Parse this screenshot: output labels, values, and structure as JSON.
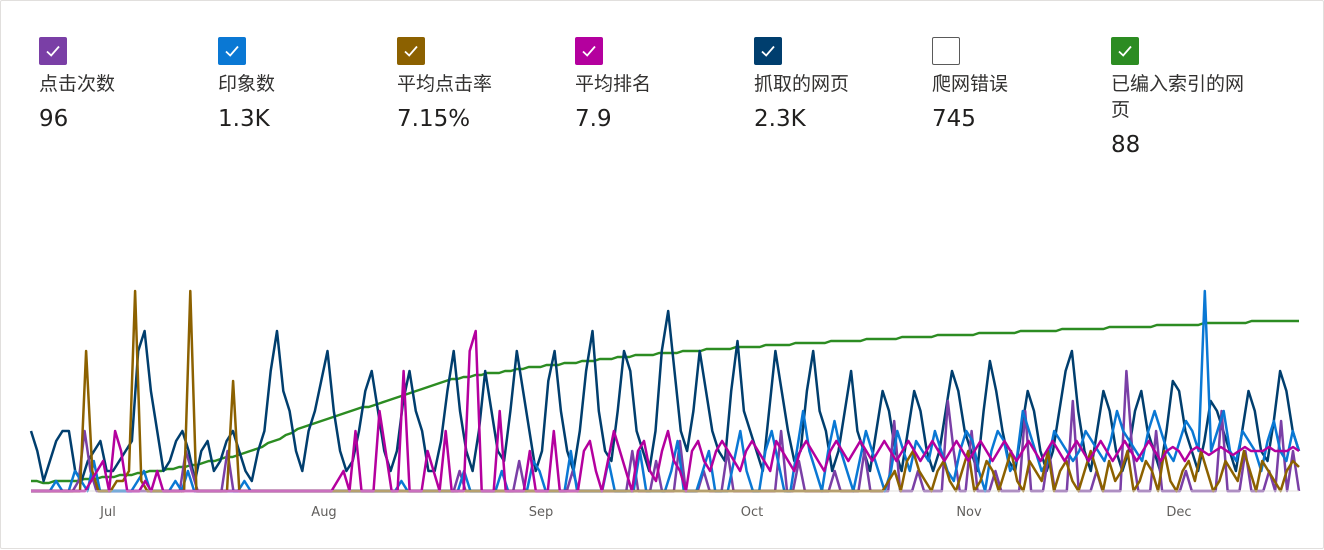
{
  "metrics": [
    {
      "label": "点击次数",
      "value": "96",
      "color": "#7a3fa6",
      "checked": true
    },
    {
      "label": "印象数",
      "value": "1.3K",
      "color": "#0a78d4",
      "checked": true
    },
    {
      "label": "平均点击率",
      "value": "7.15%",
      "color": "#8c6100",
      "checked": true
    },
    {
      "label": "平均排名",
      "value": "7.9",
      "color": "#b4009e",
      "checked": true
    },
    {
      "label": "抓取的网页",
      "value": "2.3K",
      "color": "#003e6e",
      "checked": true
    },
    {
      "label": "爬网错误",
      "value": "745",
      "color": "#ffffff",
      "checked": false
    },
    {
      "label": "已编入索引的网页",
      "value": "88",
      "color": "#2c8c22",
      "checked": true
    }
  ],
  "chart_data": {
    "type": "line",
    "x_ticks": [
      "Jul",
      "Aug",
      "Sep",
      "Oct",
      "Nov",
      "Dec"
    ],
    "grid": false,
    "legend": "top",
    "series": [
      {
        "name": "已编入索引的网页",
        "color": "#2c8c22",
        "values": [
          5,
          5,
          4,
          4,
          5,
          5,
          5,
          5,
          5,
          6,
          6,
          6,
          7,
          7,
          7,
          8,
          8,
          8,
          9,
          9,
          10,
          10,
          10,
          11,
          11,
          12,
          12,
          13,
          13,
          14,
          15,
          15,
          16,
          17,
          17,
          18,
          19,
          20,
          21,
          22,
          24,
          25,
          26,
          28,
          29,
          31,
          32,
          33,
          34,
          35,
          36,
          37,
          38,
          39,
          40,
          41,
          42,
          42,
          43,
          44,
          45,
          46,
          47,
          48,
          49,
          50,
          51,
          52,
          53,
          54,
          55,
          56,
          56,
          57,
          57,
          58,
          58,
          59,
          59,
          59,
          60,
          60,
          61,
          61,
          62,
          62,
          62,
          63,
          63,
          63,
          64,
          64,
          64,
          65,
          65,
          65,
          66,
          66,
          66,
          67,
          67,
          67,
          68,
          68,
          68,
          68,
          69,
          69,
          69,
          69,
          70,
          70,
          70,
          70,
          71,
          71,
          71,
          71,
          71,
          72,
          72,
          72,
          72,
          72,
          73,
          73,
          73,
          73,
          73,
          74,
          74,
          74,
          74,
          74,
          74,
          75,
          75,
          75,
          75,
          75,
          75,
          76,
          76,
          76,
          76,
          76,
          76,
          77,
          77,
          77,
          77,
          77,
          77,
          78,
          78,
          78,
          78,
          78,
          78,
          78,
          79,
          79,
          79,
          79,
          79,
          79,
          79,
          80,
          80,
          80,
          80,
          80,
          80,
          80,
          81,
          81,
          81,
          81,
          81,
          81,
          81,
          81,
          82,
          82,
          82,
          82,
          82,
          82,
          82,
          82,
          83,
          83,
          83,
          83,
          83,
          83,
          83,
          83,
          84,
          84,
          84,
          84,
          84,
          84,
          84,
          84,
          85,
          85,
          85,
          85,
          85,
          85,
          85,
          85,
          85
        ]
      },
      {
        "name": "抓取的网页",
        "color": "#003e6e",
        "values": [
          30,
          20,
          5,
          15,
          25,
          30,
          30,
          10,
          5,
          15,
          20,
          25,
          10,
          10,
          15,
          20,
          25,
          70,
          80,
          50,
          30,
          10,
          15,
          25,
          30,
          20,
          5,
          20,
          25,
          10,
          15,
          25,
          30,
          20,
          10,
          5,
          20,
          30,
          60,
          80,
          50,
          40,
          20,
          10,
          30,
          40,
          55,
          70,
          40,
          20,
          10,
          15,
          30,
          50,
          60,
          40,
          20,
          10,
          20,
          45,
          60,
          40,
          30,
          10,
          10,
          25,
          50,
          70,
          40,
          20,
          10,
          30,
          60,
          40,
          20,
          15,
          40,
          70,
          50,
          30,
          10,
          20,
          55,
          70,
          40,
          20,
          10,
          30,
          60,
          80,
          40,
          20,
          15,
          40,
          70,
          60,
          30,
          20,
          10,
          30,
          70,
          90,
          60,
          30,
          20,
          40,
          70,
          50,
          30,
          20,
          15,
          50,
          75,
          40,
          30,
          20,
          10,
          40,
          70,
          50,
          30,
          15,
          20,
          50,
          70,
          40,
          30,
          10,
          20,
          40,
          60,
          30,
          20,
          10,
          30,
          50,
          40,
          20,
          10,
          30,
          50,
          40,
          20,
          10,
          20,
          40,
          60,
          50,
          30,
          20,
          10,
          40,
          65,
          50,
          30,
          15,
          10,
          30,
          50,
          40,
          20,
          10,
          20,
          40,
          60,
          70,
          40,
          20,
          10,
          30,
          50,
          40,
          20,
          10,
          20,
          40,
          50,
          30,
          20,
          10,
          30,
          55,
          50,
          30,
          20,
          10,
          25,
          45,
          40,
          30,
          20,
          10,
          30,
          50,
          40,
          20,
          15,
          35,
          60,
          50,
          30,
          20
        ]
      },
      {
        "name": "点击次数",
        "color": "#7a3fa6",
        "values": [
          0,
          0,
          0,
          0,
          0,
          0,
          0,
          0,
          5,
          30,
          10,
          0,
          0,
          0,
          0,
          0,
          0,
          0,
          0,
          0,
          0,
          0,
          0,
          0,
          0,
          0,
          20,
          10,
          0,
          0,
          0,
          0,
          0,
          20,
          0,
          0,
          0,
          0,
          0,
          0,
          0,
          0,
          0,
          0,
          0,
          0,
          0,
          0,
          0,
          0,
          0,
          0,
          0,
          0,
          0,
          0,
          0,
          0,
          0,
          0,
          0,
          0,
          0,
          0,
          0,
          0,
          0,
          0,
          0,
          0,
          0,
          0,
          10,
          0,
          0,
          0,
          0,
          0,
          0,
          0,
          0,
          0,
          15,
          0,
          0,
          0,
          0,
          0,
          0,
          0,
          0,
          10,
          0,
          0,
          0,
          0,
          0,
          0,
          0,
          0,
          0,
          20,
          0,
          0,
          0,
          15,
          0,
          0,
          0,
          25,
          0,
          0,
          0,
          10,
          0,
          0,
          0,
          20,
          0,
          0,
          0,
          0,
          0,
          0,
          0,
          0,
          30,
          0,
          0,
          15,
          0,
          0,
          0,
          0,
          0,
          10,
          0,
          0,
          0,
          0,
          20,
          0,
          0,
          0,
          0,
          35,
          0,
          0,
          0,
          10,
          0,
          0,
          0,
          0,
          45,
          20,
          0,
          0,
          30,
          0,
          0,
          0,
          10,
          0,
          0,
          0,
          0,
          40,
          0,
          0,
          0,
          20,
          0,
          0,
          0,
          45,
          0,
          0,
          0,
          10,
          0,
          0,
          0,
          0,
          60,
          20,
          0,
          0,
          0,
          30,
          0,
          0,
          0,
          0,
          10,
          0,
          0,
          0,
          0,
          0,
          40,
          0,
          0,
          0,
          20,
          0,
          0,
          0,
          10,
          0,
          35,
          0,
          20,
          0
        ]
      },
      {
        "name": "印象数",
        "color": "#0a78d4",
        "values": [
          0,
          0,
          0,
          0,
          5,
          0,
          0,
          10,
          5,
          0,
          15,
          0,
          0,
          0,
          0,
          0,
          0,
          5,
          10,
          0,
          0,
          0,
          0,
          5,
          0,
          10,
          0,
          0,
          0,
          0,
          0,
          0,
          0,
          0,
          5,
          0,
          0,
          0,
          0,
          0,
          0,
          0,
          0,
          0,
          0,
          0,
          0,
          0,
          0,
          0,
          0,
          0,
          0,
          0,
          0,
          0,
          0,
          0,
          0,
          5,
          0,
          0,
          0,
          0,
          0,
          0,
          0,
          0,
          0,
          10,
          0,
          0,
          0,
          0,
          0,
          10,
          0,
          0,
          0,
          0,
          15,
          10,
          0,
          0,
          0,
          0,
          20,
          0,
          0,
          0,
          0,
          0,
          15,
          0,
          0,
          0,
          0,
          20,
          0,
          0,
          0,
          0,
          10,
          25,
          0,
          0,
          0,
          10,
          20,
          0,
          0,
          0,
          15,
          30,
          10,
          0,
          0,
          20,
          30,
          15,
          0,
          0,
          20,
          40,
          20,
          10,
          0,
          20,
          35,
          20,
          10,
          0,
          15,
          30,
          20,
          10,
          0,
          10,
          30,
          20,
          10,
          25,
          20,
          15,
          30,
          20,
          10,
          5,
          20,
          30,
          25,
          10,
          0,
          20,
          30,
          25,
          10,
          15,
          40,
          30,
          20,
          10,
          15,
          30,
          25,
          20,
          15,
          20,
          30,
          25,
          20,
          15,
          25,
          40,
          30,
          25,
          20,
          15,
          30,
          40,
          30,
          20,
          15,
          25,
          35,
          30,
          20,
          100,
          20,
          30,
          40,
          20,
          15,
          30,
          25,
          20,
          10,
          25,
          35,
          20,
          15,
          30,
          20
        ]
      },
      {
        "name": "平均点击率",
        "color": "#8c6100",
        "values": [
          0,
          0,
          0,
          0,
          0,
          0,
          0,
          0,
          0,
          70,
          10,
          0,
          0,
          0,
          5,
          5,
          10,
          100,
          5,
          0,
          0,
          0,
          0,
          0,
          0,
          0,
          100,
          0,
          0,
          0,
          0,
          0,
          0,
          55,
          0,
          0,
          0,
          0,
          0,
          0,
          0,
          0,
          0,
          0,
          0,
          0,
          0,
          0,
          0,
          0,
          0,
          0,
          0,
          0,
          0,
          0,
          0,
          0,
          0,
          0,
          0,
          0,
          0,
          0,
          0,
          0,
          0,
          0,
          0,
          0,
          0,
          0,
          0,
          0,
          0,
          0,
          0,
          0,
          0,
          0,
          0,
          0,
          0,
          0,
          0,
          0,
          0,
          0,
          0,
          0,
          0,
          0,
          0,
          0,
          0,
          0,
          0,
          0,
          0,
          0,
          0,
          0,
          0,
          0,
          0,
          0,
          0,
          0,
          0,
          0,
          0,
          0,
          0,
          0,
          0,
          0,
          0,
          0,
          0,
          0,
          0,
          0,
          0,
          0,
          0,
          0,
          0,
          0,
          0,
          0,
          0,
          0,
          0,
          0,
          0,
          0,
          0,
          0,
          0,
          0,
          5,
          10,
          0,
          15,
          20,
          10,
          5,
          0,
          10,
          15,
          5,
          0,
          10,
          20,
          0,
          5,
          15,
          10,
          0,
          10,
          20,
          5,
          0,
          15,
          10,
          5,
          20,
          0,
          10,
          15,
          5,
          0,
          10,
          20,
          10,
          0,
          15,
          5,
          10,
          20,
          0,
          5,
          15,
          10,
          0,
          20,
          5,
          0,
          10,
          15,
          5,
          20,
          10,
          0,
          5,
          15,
          10,
          5,
          20,
          10,
          0,
          15,
          10,
          5,
          0,
          10,
          15,
          12
        ]
      },
      {
        "name": "平均排名",
        "color": "#b4009e",
        "values": [
          0,
          0,
          0,
          0,
          0,
          0,
          0,
          0,
          0,
          0,
          5,
          10,
          15,
          0,
          30,
          20,
          0,
          0,
          0,
          5,
          0,
          10,
          0,
          0,
          0,
          0,
          0,
          0,
          0,
          0,
          0,
          0,
          0,
          0,
          0,
          0,
          0,
          0,
          0,
          0,
          0,
          0,
          0,
          0,
          0,
          0,
          0,
          0,
          0,
          0,
          0,
          5,
          10,
          0,
          30,
          0,
          0,
          0,
          40,
          20,
          0,
          0,
          60,
          0,
          0,
          0,
          20,
          10,
          0,
          30,
          0,
          0,
          0,
          70,
          80,
          0,
          0,
          0,
          40,
          0,
          0,
          0,
          0,
          20,
          0,
          0,
          0,
          30,
          0,
          0,
          0,
          0,
          20,
          25,
          10,
          0,
          15,
          30,
          20,
          10,
          0,
          20,
          25,
          10,
          5,
          20,
          30,
          15,
          10,
          0,
          20,
          25,
          15,
          10,
          20,
          25,
          20,
          15,
          10,
          20,
          25,
          20,
          15,
          10,
          25,
          20,
          15,
          10,
          20,
          25,
          20,
          15,
          10,
          20,
          25,
          20,
          15,
          20,
          25,
          20,
          15,
          20,
          25,
          20,
          15,
          20,
          25,
          20,
          15,
          20,
          25,
          20,
          15,
          20,
          25,
          20,
          15,
          20,
          25,
          20,
          15,
          20,
          25,
          20,
          15,
          20,
          25,
          20,
          15,
          20,
          25,
          20,
          15,
          20,
          25,
          20,
          15,
          20,
          25,
          20,
          15,
          20,
          25,
          20,
          15,
          20,
          25,
          20,
          15,
          20,
          22,
          20,
          15,
          20,
          22,
          20,
          18,
          20,
          22,
          20,
          18,
          20,
          22,
          20,
          20,
          20,
          22,
          20,
          20,
          20,
          22,
          20
        ]
      }
    ]
  }
}
